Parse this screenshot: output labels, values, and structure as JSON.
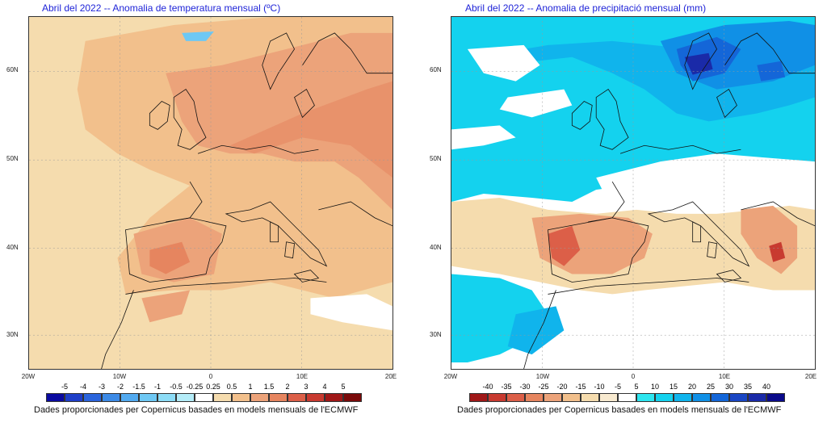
{
  "temperature_panel": {
    "title": "Abril del 2022 -- Anomalia de temperatura mensual (ºC)",
    "lat_labels": [
      "60N",
      "50N",
      "40N",
      "30N"
    ],
    "lon_labels": [
      "20W",
      "10W",
      "0",
      "10E",
      "20E"
    ],
    "legend_labels": [
      "-5",
      "-4",
      "-3",
      "-2",
      "-1.5",
      "-1",
      "-0.5",
      "-0.25",
      "0.25",
      "0.5",
      "1",
      "1.5",
      "2",
      "3",
      "4",
      "5"
    ],
    "legend_colors": [
      "#0a0aa0",
      "#1e3ec8",
      "#2a64dc",
      "#3c8ae6",
      "#52aaf0",
      "#6ec8f4",
      "#8cdcf6",
      "#b4ecf8",
      "#ffffff",
      "#f5dcae",
      "#f2c08c",
      "#eca37a",
      "#e6855f",
      "#dc5f48",
      "#c83a30",
      "#a01818",
      "#7a0a0a"
    ],
    "footer": "Dades proporcionades per Copernicus basades en models mensuals de l'ECMWF"
  },
  "precipitation_panel": {
    "title": "Abril del 2022 -- Anomalia de precipitació mensual (mm)",
    "lat_labels": [
      "60N",
      "50N",
      "40N",
      "30N"
    ],
    "lon_labels": [
      "20W",
      "10W",
      "0",
      "10E",
      "20E"
    ],
    "legend_labels": [
      "-40",
      "-35",
      "-30",
      "-25",
      "-20",
      "-15",
      "-10",
      "-5",
      "5",
      "10",
      "15",
      "20",
      "25",
      "30",
      "35",
      "40"
    ],
    "legend_colors": [
      "#a01818",
      "#c83a30",
      "#dc5f48",
      "#e6855f",
      "#eca37a",
      "#f2c08c",
      "#f5dcae",
      "#f8ead0",
      "#ffffff",
      "#2ee6f0",
      "#14d2ee",
      "#10b4ec",
      "#1090e6",
      "#1466d8",
      "#1a46c4",
      "#1a2aa8",
      "#0a0a8a"
    ],
    "footer": "Dades proporcionades per Copernicus basades en models mensuals de l'ECMWF"
  }
}
